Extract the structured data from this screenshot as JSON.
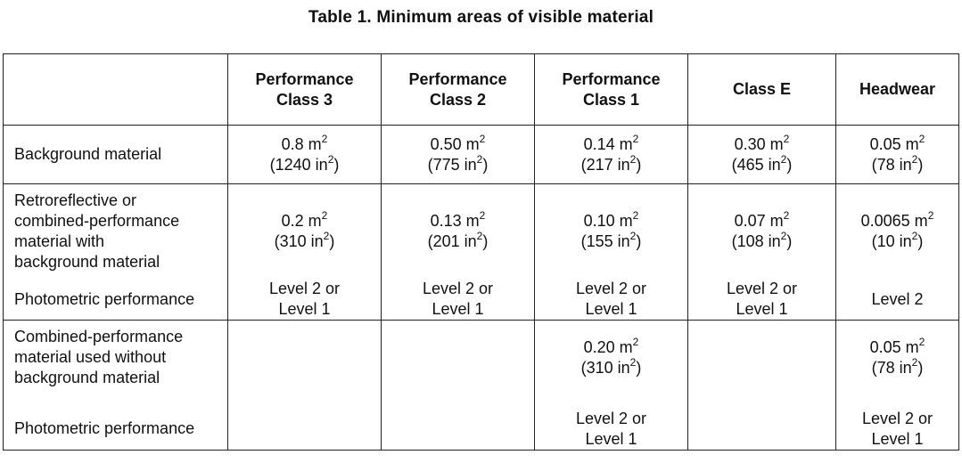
{
  "title": "Table 1.  Minimum areas of visible material",
  "columns": [
    {
      "l1": "Performance",
      "l2": "Class 3"
    },
    {
      "l1": "Performance",
      "l2": "Class 2"
    },
    {
      "l1": "Performance",
      "l2": "Class 1"
    },
    {
      "l1": "Class E",
      "l2": ""
    },
    {
      "l1": "Headwear",
      "l2": ""
    }
  ],
  "rows": {
    "background": {
      "label": "Background material",
      "cells": [
        {
          "m": "0.8 m",
          "in": "(1240 in",
          "close": ")"
        },
        {
          "m": "0.50 m",
          "in": "(775 in",
          "close": ")"
        },
        {
          "m": "0.14 m",
          "in": "(217 in",
          "close": ")"
        },
        {
          "m": "0.30 m",
          "in": "(465 in",
          "close": ")"
        },
        {
          "m": "0.05 m",
          "in": "(78 in",
          "close": ")"
        }
      ]
    },
    "retro": {
      "label_lines": [
        "Retroreflective or",
        "combined-performance",
        "material with",
        "background material"
      ],
      "photometric_label": "Photometric performance",
      "cells": [
        {
          "m": "0.2 m",
          "in": "(310 in",
          "close": ")",
          "p1": "Level 2 or",
          "p2": "Level 1"
        },
        {
          "m": "0.13 m",
          "in": "(201 in",
          "close": ")",
          "p1": "Level 2 or",
          "p2": "Level 1"
        },
        {
          "m": "0.10 m",
          "in": "(155 in",
          "close": ")",
          "p1": "Level 2 or",
          "p2": "Level 1"
        },
        {
          "m": "0.07 m",
          "in": "(108 in",
          "close": ")",
          "p1": "Level 2 or",
          "p2": "Level 1"
        },
        {
          "m": "0.0065 m",
          "in": "(10 in",
          "close": ")",
          "p1": "Level 2",
          "p2": ""
        }
      ]
    },
    "combined": {
      "label_lines": [
        "Combined-performance",
        "material used without",
        "background material"
      ],
      "photometric_label": "Photometric performance",
      "class1": {
        "m": "0.20 m",
        "in": "(310 in",
        "close": ")",
        "p1": "Level 2 or",
        "p2": "Level 1"
      },
      "headwear": {
        "m": "0.05 m",
        "in": "(78 in",
        "close": ")",
        "p1": "Level 2 or",
        "p2": "Level 1"
      }
    }
  },
  "superscript": "2"
}
